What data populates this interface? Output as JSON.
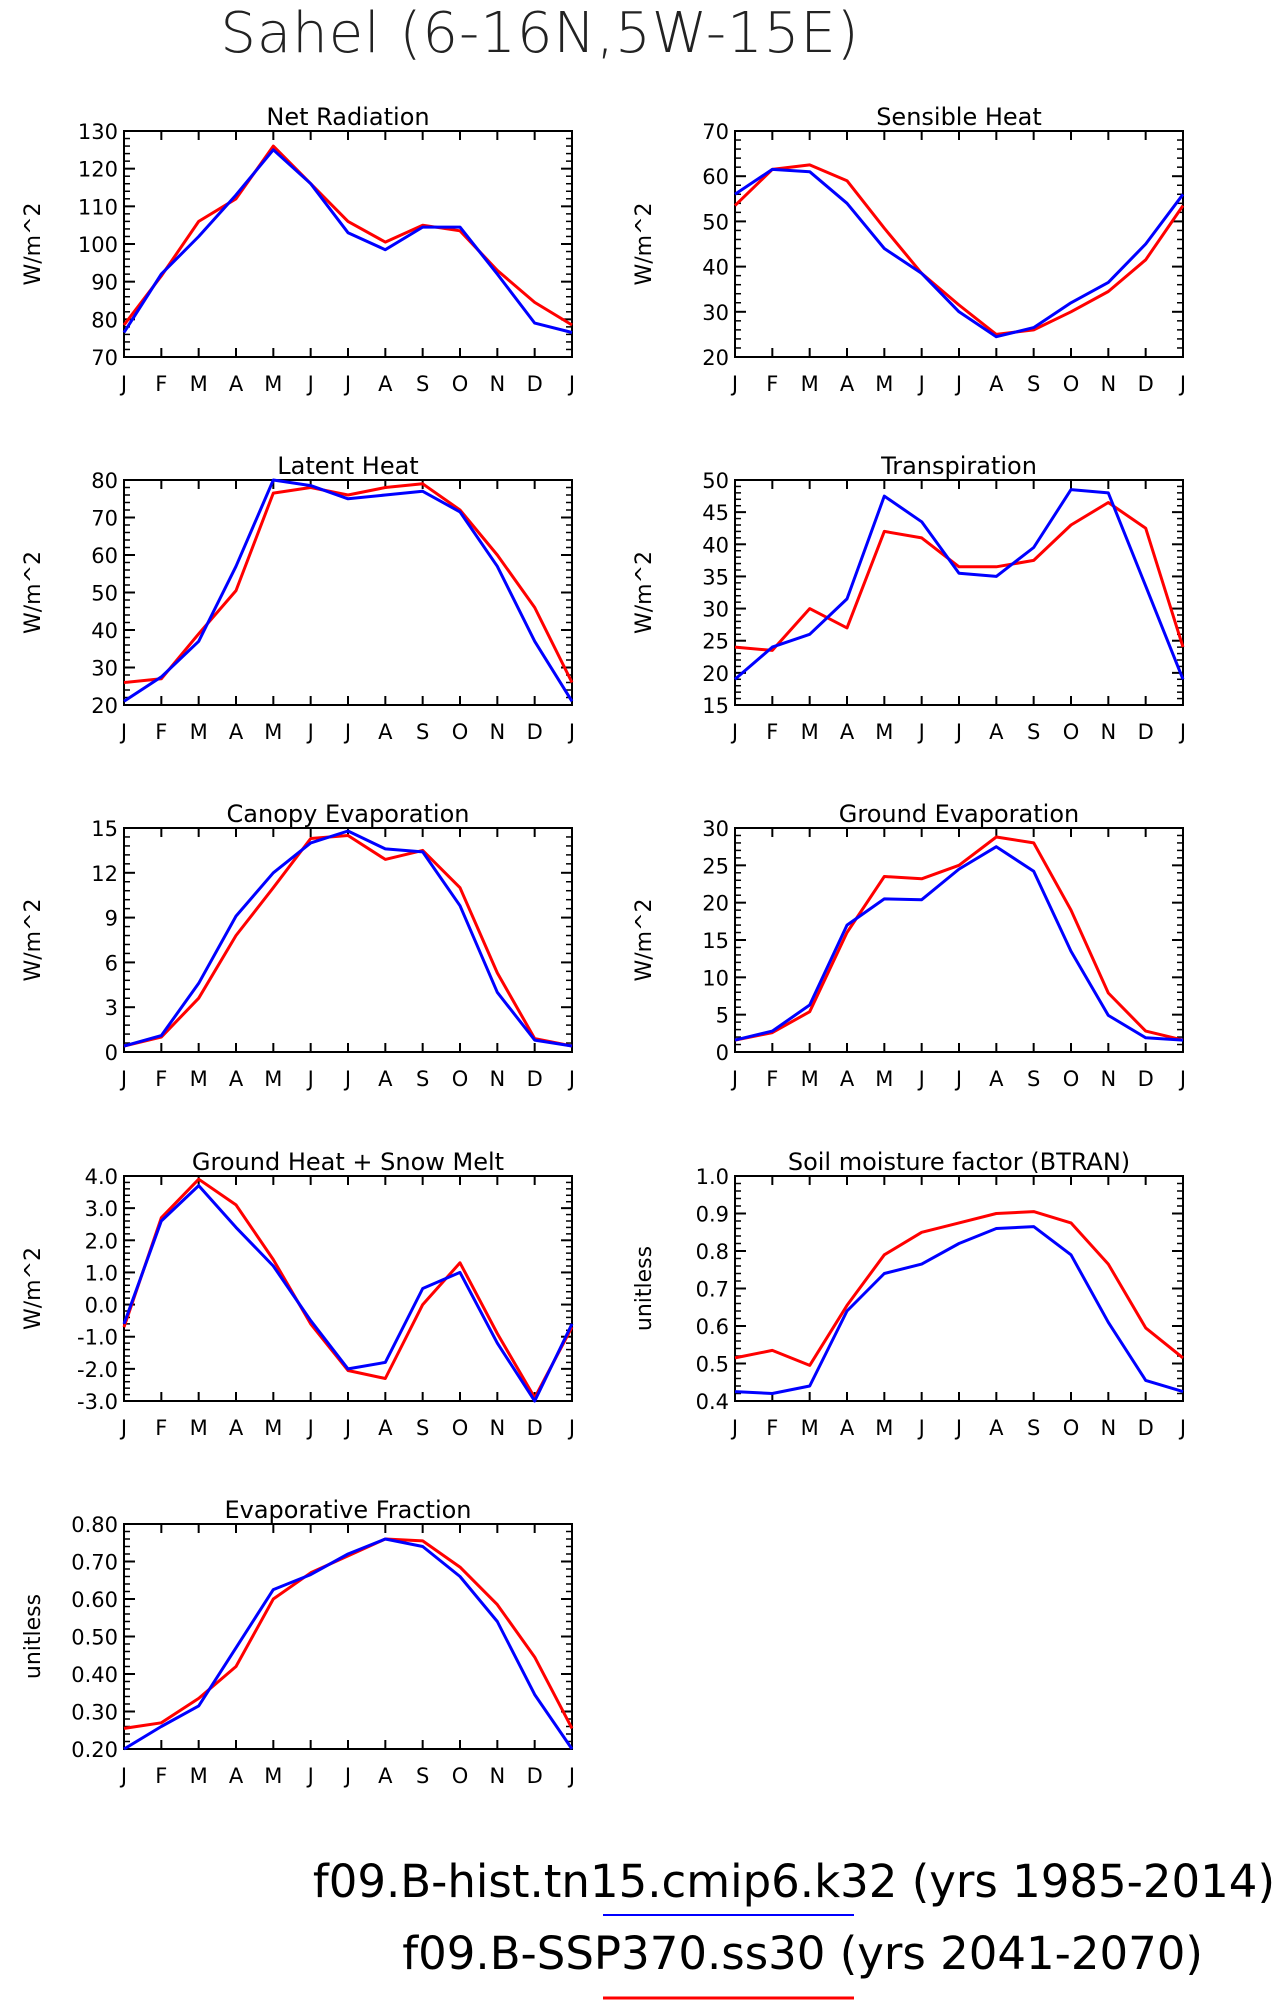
{
  "page_title": "Sahel (6-16N,5W-15E)",
  "colors": {
    "hist": "#0000ff",
    "ssp": "#ff0000",
    "axis": "#000000"
  },
  "legend": [
    {
      "label": "f09.B-hist.tn15.cmip6.k32 (yrs 1985-2014)",
      "color": "#0000ff"
    },
    {
      "label": "f09.B-SSP370.ss30 (yrs 2041-2070)",
      "color": "#ff0000"
    }
  ],
  "chart_data": [
    {
      "type": "line",
      "title": "Net Radiation",
      "ylabel": "W/m^2",
      "categories": [
        "J",
        "F",
        "M",
        "A",
        "M",
        "J",
        "J",
        "A",
        "S",
        "O",
        "N",
        "D",
        "J"
      ],
      "ylim": [
        70,
        130
      ],
      "yticks": [
        "70",
        "80",
        "90",
        "100",
        "110",
        "120",
        "130"
      ],
      "ytick_values": [
        70,
        80,
        90,
        100,
        110,
        120,
        130
      ],
      "series": [
        {
          "color": "#0000ff",
          "values": [
            76.5,
            92,
            102,
            113,
            125,
            116,
            103,
            98.5,
            104.5,
            104.5,
            92,
            79,
            76.5
          ]
        },
        {
          "color": "#ff0000",
          "values": [
            78.5,
            91.5,
            106,
            112,
            126,
            116,
            106,
            100.5,
            105,
            103.5,
            93,
            84.5,
            78.5
          ]
        }
      ]
    },
    {
      "type": "line",
      "title": "Sensible Heat",
      "ylabel": "W/m^2",
      "categories": [
        "J",
        "F",
        "M",
        "A",
        "M",
        "J",
        "J",
        "A",
        "S",
        "O",
        "N",
        "D",
        "J"
      ],
      "ylim": [
        20,
        70
      ],
      "yticks": [
        "20",
        "30",
        "40",
        "50",
        "60",
        "70"
      ],
      "ytick_values": [
        20,
        30,
        40,
        50,
        60,
        70
      ],
      "series": [
        {
          "color": "#0000ff",
          "values": [
            56,
            61.5,
            61,
            54,
            44,
            38.5,
            30,
            24.5,
            26.5,
            32,
            36.5,
            45,
            56
          ]
        },
        {
          "color": "#ff0000",
          "values": [
            53.5,
            61.5,
            62.5,
            59,
            48.5,
            38.5,
            31.5,
            25,
            26,
            30,
            34.5,
            41.5,
            53.5
          ]
        }
      ]
    },
    {
      "type": "line",
      "title": "Latent Heat",
      "ylabel": "W/m^2",
      "categories": [
        "J",
        "F",
        "M",
        "A",
        "M",
        "J",
        "J",
        "A",
        "S",
        "O",
        "N",
        "D",
        "J"
      ],
      "ylim": [
        20,
        80
      ],
      "yticks": [
        "20",
        "30",
        "40",
        "50",
        "60",
        "70",
        "80"
      ],
      "ytick_values": [
        20,
        30,
        40,
        50,
        60,
        70,
        80
      ],
      "series": [
        {
          "color": "#0000ff",
          "values": [
            21,
            27.5,
            37,
            57,
            80,
            78.5,
            75,
            76,
            77,
            71.5,
            57,
            37,
            21
          ]
        },
        {
          "color": "#ff0000",
          "values": [
            26,
            27,
            39,
            50.5,
            76.5,
            78,
            76,
            78,
            79,
            72,
            60,
            46,
            26
          ]
        }
      ]
    },
    {
      "type": "line",
      "title": "Transpiration",
      "ylabel": "W/m^2",
      "categories": [
        "J",
        "F",
        "M",
        "A",
        "M",
        "J",
        "J",
        "A",
        "S",
        "O",
        "N",
        "D",
        "J"
      ],
      "ylim": [
        15,
        50
      ],
      "yticks": [
        "15",
        "20",
        "25",
        "30",
        "35",
        "40",
        "45",
        "50"
      ],
      "ytick_values": [
        15,
        20,
        25,
        30,
        35,
        40,
        45,
        50
      ],
      "series": [
        {
          "color": "#0000ff",
          "values": [
            19,
            24,
            26,
            31.5,
            47.5,
            43.5,
            35.5,
            35,
            39.5,
            48.5,
            48,
            33.5,
            19
          ]
        },
        {
          "color": "#ff0000",
          "values": [
            24,
            23.5,
            30,
            27,
            42,
            41,
            36.5,
            36.5,
            37.5,
            43,
            46.5,
            42.5,
            24
          ]
        }
      ]
    },
    {
      "type": "line",
      "title": "Canopy Evaporation",
      "ylabel": "W/m^2",
      "categories": [
        "J",
        "F",
        "M",
        "A",
        "M",
        "J",
        "J",
        "A",
        "S",
        "O",
        "N",
        "D",
        "J"
      ],
      "ylim": [
        0,
        15
      ],
      "yticks": [
        "0",
        "3",
        "6",
        "9",
        "12",
        "15"
      ],
      "ytick_values": [
        0,
        3,
        6,
        9,
        12,
        15
      ],
      "series": [
        {
          "color": "#0000ff",
          "values": [
            0.4,
            1.1,
            4.6,
            9.1,
            12,
            14,
            14.8,
            13.6,
            13.4,
            9.8,
            4.0,
            0.8,
            0.4
          ]
        },
        {
          "color": "#ff0000",
          "values": [
            0.4,
            1.0,
            3.6,
            7.8,
            11,
            14.3,
            14.5,
            12.9,
            13.5,
            11,
            5.3,
            0.9,
            0.4
          ]
        }
      ]
    },
    {
      "type": "line",
      "title": "Ground Evaporation",
      "ylabel": "W/m^2",
      "categories": [
        "J",
        "F",
        "M",
        "A",
        "M",
        "J",
        "J",
        "A",
        "S",
        "O",
        "N",
        "D",
        "J"
      ],
      "ylim": [
        0,
        30
      ],
      "yticks": [
        "0",
        "5",
        "10",
        "15",
        "20",
        "25",
        "30"
      ],
      "ytick_values": [
        0,
        5,
        10,
        15,
        20,
        25,
        30
      ],
      "series": [
        {
          "color": "#0000ff",
          "values": [
            1.6,
            2.8,
            6.3,
            17,
            20.5,
            20.4,
            24.5,
            27.5,
            24.2,
            13.5,
            4.9,
            1.9,
            1.6
          ]
        },
        {
          "color": "#ff0000",
          "values": [
            1.6,
            2.6,
            5.4,
            16,
            23.5,
            23.2,
            25,
            28.8,
            28,
            19,
            7.9,
            2.8,
            1.6
          ]
        }
      ]
    },
    {
      "type": "line",
      "title": "Ground Heat + Snow Melt",
      "ylabel": "W/m^2",
      "categories": [
        "J",
        "F",
        "M",
        "A",
        "M",
        "J",
        "J",
        "A",
        "S",
        "O",
        "N",
        "D",
        "J"
      ],
      "ylim": [
        -3,
        4
      ],
      "yticks": [
        "-3.0",
        "-2.0",
        "-1.0",
        "0.0",
        "1.0",
        "2.0",
        "3.0",
        "4.0"
      ],
      "ytick_values": [
        -3,
        -2,
        -1,
        0,
        1,
        2,
        3,
        4
      ],
      "series": [
        {
          "color": "#0000ff",
          "values": [
            -0.6,
            2.6,
            3.7,
            2.4,
            1.2,
            -0.5,
            -2.0,
            -1.8,
            0.5,
            1.0,
            -1.2,
            -3.0,
            -0.6
          ]
        },
        {
          "color": "#ff0000",
          "values": [
            -0.7,
            2.7,
            3.9,
            3.1,
            1.4,
            -0.6,
            -2.05,
            -2.3,
            0.0,
            1.3,
            -0.9,
            -2.9,
            -0.7
          ]
        }
      ]
    },
    {
      "type": "line",
      "title": "Soil moisture factor (BTRAN)",
      "ylabel": "unitless",
      "categories": [
        "J",
        "F",
        "M",
        "A",
        "M",
        "J",
        "J",
        "A",
        "S",
        "O",
        "N",
        "D",
        "J"
      ],
      "ylim": [
        0.4,
        1.0
      ],
      "yticks": [
        "0.4",
        "0.5",
        "0.6",
        "0.7",
        "0.8",
        "0.9",
        "1.0"
      ],
      "ytick_values": [
        0.4,
        0.5,
        0.6,
        0.7,
        0.8,
        0.9,
        1.0
      ],
      "series": [
        {
          "color": "#0000ff",
          "values": [
            0.425,
            0.42,
            0.44,
            0.64,
            0.74,
            0.765,
            0.82,
            0.86,
            0.865,
            0.79,
            0.61,
            0.455,
            0.425
          ]
        },
        {
          "color": "#ff0000",
          "values": [
            0.515,
            0.535,
            0.495,
            0.655,
            0.79,
            0.85,
            0.875,
            0.9,
            0.905,
            0.875,
            0.765,
            0.595,
            0.515
          ]
        }
      ]
    },
    {
      "type": "line",
      "title": "Evaporative Fraction",
      "ylabel": "unitless",
      "categories": [
        "J",
        "F",
        "M",
        "A",
        "M",
        "J",
        "J",
        "A",
        "S",
        "O",
        "N",
        "D",
        "J"
      ],
      "ylim": [
        0.2,
        0.8
      ],
      "yticks": [
        "0.20",
        "0.30",
        "0.40",
        "0.50",
        "0.60",
        "0.70",
        "0.80"
      ],
      "ytick_values": [
        0.2,
        0.3,
        0.4,
        0.5,
        0.6,
        0.7,
        0.8
      ],
      "series": [
        {
          "color": "#0000ff",
          "values": [
            0.2,
            0.26,
            0.315,
            0.47,
            0.625,
            0.665,
            0.72,
            0.76,
            0.74,
            0.66,
            0.54,
            0.345,
            0.2
          ]
        },
        {
          "color": "#ff0000",
          "values": [
            0.255,
            0.27,
            0.335,
            0.42,
            0.6,
            0.67,
            0.715,
            0.76,
            0.755,
            0.685,
            0.585,
            0.445,
            0.255
          ]
        }
      ]
    }
  ]
}
